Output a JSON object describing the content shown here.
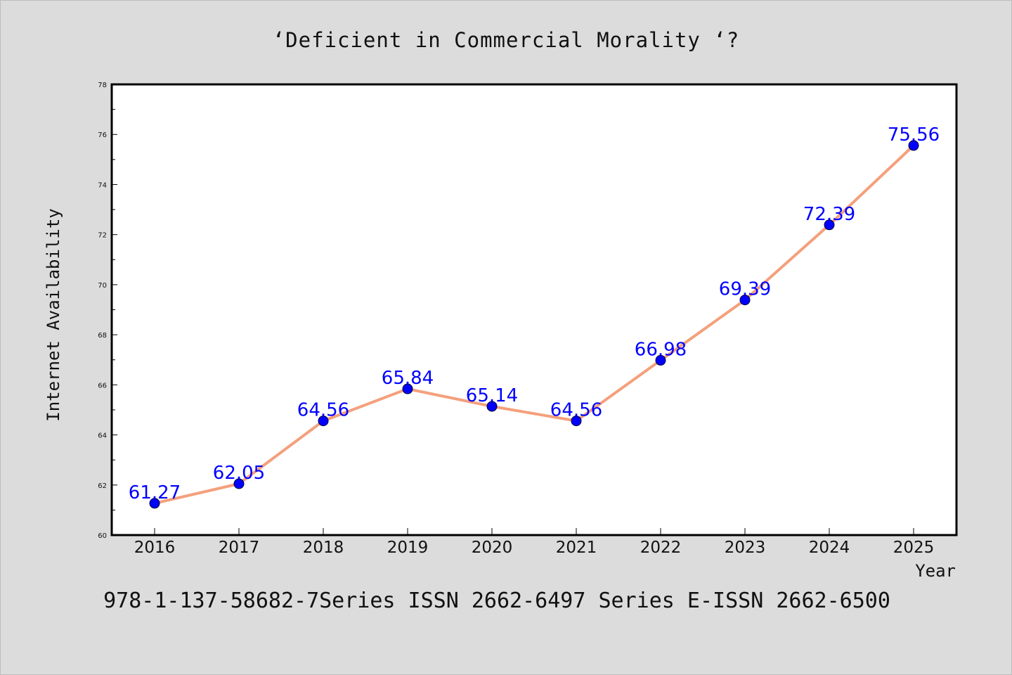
{
  "title": "‘Deficient in Commercial Morality ‘?",
  "footer": "978-1-137-58682-7Series ISSN 2662-6497 Series E-ISSN 2662-6500",
  "chart_data": {
    "type": "line",
    "title": "‘Deficient in Commercial Morality ‘?",
    "xlabel": "Year",
    "ylabel": "Internet Availability",
    "x": [
      "2016",
      "2017",
      "2018",
      "2019",
      "2020",
      "2021",
      "2022",
      "2023",
      "2024",
      "2025"
    ],
    "series": [
      {
        "values": [
          61.27,
          62.05,
          64.56,
          65.84,
          65.14,
          64.56,
          66.98,
          69.39,
          72.39,
          75.56
        ],
        "labels": [
          "61.27",
          "62.05",
          "64.56",
          "65.84",
          "65.14",
          "64.56",
          "66.98",
          "69.39",
          "72.39",
          "75.56"
        ]
      }
    ],
    "ylim": [
      60,
      78
    ],
    "yticks": [
      "60",
      "62",
      "64",
      "66",
      "68",
      "70",
      "72",
      "74",
      "76",
      "78"
    ],
    "grid": false,
    "colors": {
      "line": "#f4a07c",
      "marker": "#0000ff",
      "label": "#0000ff"
    }
  }
}
